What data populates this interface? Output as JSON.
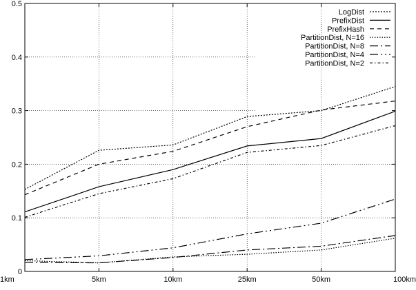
{
  "chart_data": {
    "type": "line",
    "title": "",
    "xlabel": "",
    "ylabel": "",
    "categories": [
      "1km",
      "5km",
      "10km",
      "25km",
      "50km",
      "100km"
    ],
    "ylim": [
      0,
      0.5
    ],
    "yticks": [
      "0",
      "0.1",
      "0.2",
      "0.3",
      "0.4",
      "0.5"
    ],
    "grid": true,
    "legend_position": "top-right",
    "series": [
      {
        "name": "LogDist",
        "dash": "2 2",
        "values": [
          0.153,
          0.226,
          0.236,
          0.289,
          0.3,
          0.345
        ]
      },
      {
        "name": "PrefixDist",
        "dash": "",
        "values": [
          0.111,
          0.158,
          0.19,
          0.234,
          0.248,
          0.299
        ]
      },
      {
        "name": "PrefixHash",
        "dash": "6 5",
        "values": [
          0.143,
          0.2,
          0.224,
          0.27,
          0.301,
          0.318
        ]
      },
      {
        "name": "PartitionDist, N=16",
        "dash": "1.5 2",
        "values": [
          0.02,
          0.016,
          0.027,
          0.032,
          0.04,
          0.062
        ]
      },
      {
        "name": "PartitionDist, N=8",
        "dash": "12 4 2 4",
        "values": [
          0.017,
          0.016,
          0.026,
          0.04,
          0.047,
          0.067
        ]
      },
      {
        "name": "PartitionDist, N=4",
        "dash": "12 4 2 4 2 4",
        "values": [
          0.022,
          0.029,
          0.044,
          0.07,
          0.09,
          0.135
        ]
      },
      {
        "name": "PartitionDist, N=2",
        "dash": "4 3 1.5 3",
        "values": [
          0.101,
          0.145,
          0.173,
          0.222,
          0.235,
          0.272
        ]
      }
    ]
  }
}
